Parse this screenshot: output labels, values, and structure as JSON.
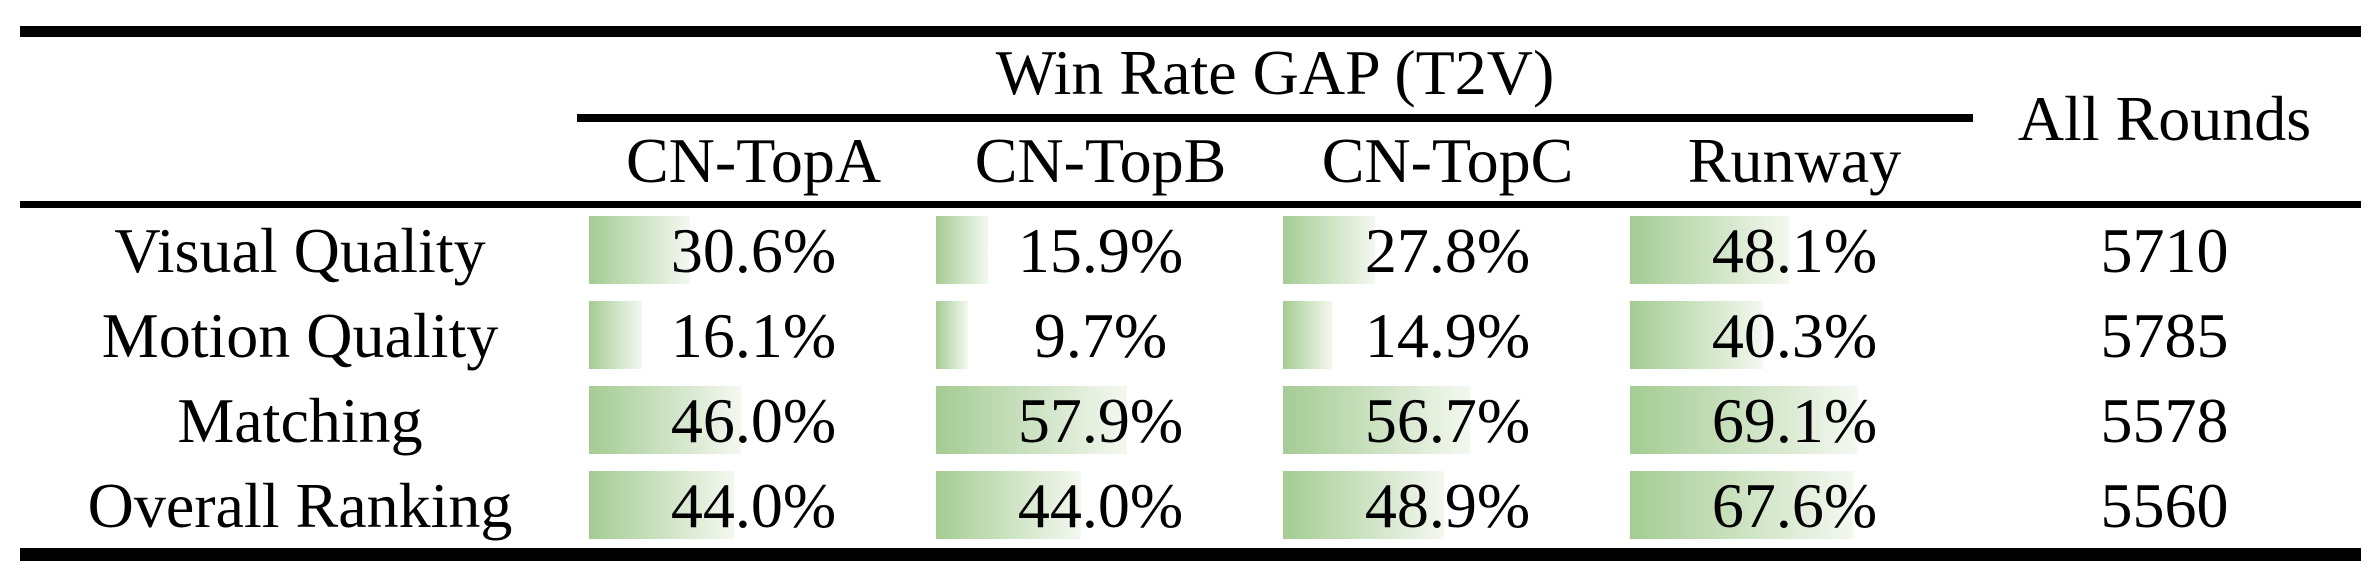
{
  "table": {
    "group_header": "Win Rate GAP (T2V)",
    "all_rounds_header": "All Rounds",
    "columns": [
      "CN-TopA",
      "CN-TopB",
      "CN-TopC",
      "Runway"
    ],
    "rows": [
      {
        "label": "Visual Quality",
        "cells": [
          {
            "text": "30.6%",
            "percent": 30.6
          },
          {
            "text": "15.9%",
            "percent": 15.9
          },
          {
            "text": "27.8%",
            "percent": 27.8
          },
          {
            "text": "48.1%",
            "percent": 48.1
          }
        ],
        "all_rounds": "5710"
      },
      {
        "label": "Motion Quality",
        "cells": [
          {
            "text": "16.1%",
            "percent": 16.1
          },
          {
            "text": "9.7%",
            "percent": 9.7
          },
          {
            "text": "14.9%",
            "percent": 14.9
          },
          {
            "text": "40.3%",
            "percent": 40.3
          }
        ],
        "all_rounds": "5785"
      },
      {
        "label": "Matching",
        "cells": [
          {
            "text": "46.0%",
            "percent": 46.0
          },
          {
            "text": "57.9%",
            "percent": 57.9
          },
          {
            "text": "56.7%",
            "percent": 56.7
          },
          {
            "text": "69.1%",
            "percent": 69.1
          }
        ],
        "all_rounds": "5578"
      },
      {
        "label": "Overall Ranking",
        "cells": [
          {
            "text": "44.0%",
            "percent": 44.0
          },
          {
            "text": "44.0%",
            "percent": 44.0
          },
          {
            "text": "48.9%",
            "percent": 48.9
          },
          {
            "text": "67.6%",
            "percent": 67.6
          }
        ],
        "all_rounds": "5560"
      }
    ],
    "bar_gradient": {
      "from": "#a4cc93",
      "to": "#f4f8f0"
    },
    "rule_color": "#000000",
    "text_color": "#000000",
    "background_color": "#ffffff"
  },
  "chart_data": {
    "type": "table",
    "title": "Win Rate GAP (T2V)",
    "categories": [
      "Visual Quality",
      "Motion Quality",
      "Matching",
      "Overall Ranking"
    ],
    "series": [
      {
        "name": "CN-TopA",
        "values": [
          30.6,
          16.1,
          46.0,
          44.0
        ]
      },
      {
        "name": "CN-TopB",
        "values": [
          15.9,
          9.7,
          57.9,
          44.0
        ]
      },
      {
        "name": "CN-TopC",
        "values": [
          27.8,
          14.9,
          56.7,
          48.9
        ]
      },
      {
        "name": "Runway",
        "values": [
          48.1,
          40.3,
          69.1,
          67.6
        ]
      }
    ],
    "all_rounds": {
      "name": "All Rounds",
      "values": [
        5710,
        5785,
        5578,
        5560
      ]
    },
    "value_unit": "%",
    "bar_scale": "in-cell data bars, length proportional to percent, 100% ≈ 330px"
  }
}
